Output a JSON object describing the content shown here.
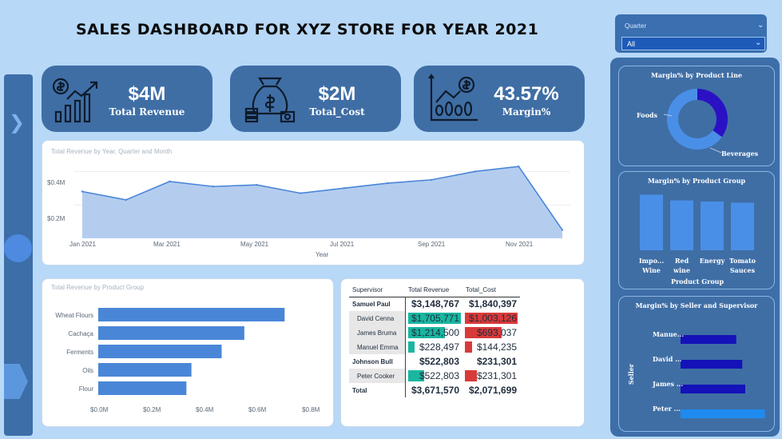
{
  "title": "SALES DASHBOARD FOR XYZ STORE FOR YEAR 2021",
  "slicer": {
    "label": "Quarter",
    "value": "All"
  },
  "kpis": {
    "revenue": {
      "value": "$4M",
      "label": "Total Revenue",
      "icon": "revenue-growth-icon"
    },
    "cost": {
      "value": "$2M",
      "label": "Total_Cost",
      "icon": "money-bag-icon"
    },
    "margin": {
      "value": "43.57%",
      "label": "Margin%",
      "icon": "dollar-chart-icon"
    }
  },
  "line_chart": {
    "title": "Total Revenue by Year, Quarter and Month",
    "xlabel": "Year",
    "ytick_labels": [
      "$0.4M",
      "$0.2M"
    ],
    "xtick_labels": [
      "Jan 2021",
      "Mar 2021",
      "May 2021",
      "Jul 2021",
      "Sep 2021",
      "Nov 2021"
    ]
  },
  "bar_chart": {
    "title": "Total Revenue by Product Group",
    "xtick_labels": [
      "$0.0M",
      "$0.2M",
      "$0.4M",
      "$0.6M",
      "$0.8M"
    ]
  },
  "matrix": {
    "headers": [
      "Supervisor",
      "Total Revenue",
      "Total_Cost"
    ],
    "rows": [
      {
        "kind": "parent",
        "name": "Samuel Paul",
        "revenue": "$3,148,767",
        "cost": "$1,840,397"
      },
      {
        "kind": "child",
        "name": "David Cenna",
        "revenue": "$1,705,771",
        "cost": "$1,003,126",
        "rev_frac": 1.0,
        "cost_frac": 1.0
      },
      {
        "kind": "child",
        "name": "James Bruma",
        "revenue": "$1,214,500",
        "cost": "$693,037",
        "rev_frac": 0.71,
        "cost_frac": 0.69
      },
      {
        "kind": "child",
        "name": "Manuel Emma",
        "revenue": "$228,497",
        "cost": "$144,235",
        "rev_frac": 0.13,
        "cost_frac": 0.14
      },
      {
        "kind": "parent",
        "name": "Johnson Bull",
        "revenue": "$522,803",
        "cost": "$231,301"
      },
      {
        "kind": "child",
        "name": "Peter Cooker",
        "revenue": "$522,803",
        "cost": "$231,301",
        "rev_frac": 0.31,
        "cost_frac": 0.23
      },
      {
        "kind": "total",
        "name": "Total",
        "revenue": "$3,671,570",
        "cost": "$2,071,699"
      }
    ],
    "colors": {
      "revenue_bar": "#19b6a0",
      "cost_bar": "#d83a3a"
    }
  },
  "side": {
    "donut": {
      "title": "Margin% by Product Line",
      "labels": [
        "Foods",
        "Beverages"
      ]
    },
    "group": {
      "title": "Margin% by Product Group"
    },
    "seller": {
      "title": "Margin% by Seller and Supervisor",
      "axis": "Seller"
    }
  },
  "chart_data": [
    {
      "type": "area",
      "title": "Total Revenue by Year, Quarter and Month",
      "xlabel": "Year",
      "ylabel": "",
      "categories": [
        "Jan 2021",
        "Feb 2021",
        "Mar 2021",
        "Apr 2021",
        "May 2021",
        "Jun 2021",
        "Jul 2021",
        "Aug 2021",
        "Sep 2021",
        "Oct 2021",
        "Nov 2021",
        "Dec 2021"
      ],
      "values": [
        0.28,
        0.23,
        0.34,
        0.31,
        0.32,
        0.27,
        0.3,
        0.33,
        0.35,
        0.4,
        0.43,
        0.05
      ],
      "ylim": [
        0,
        0.45
      ],
      "color": "#4a86d8"
    },
    {
      "type": "bar",
      "orientation": "horizontal",
      "title": "Total Revenue by Product Group",
      "categories": [
        "Wheat Flours",
        "Cachaça",
        "Ferments",
        "Oils",
        "Flour"
      ],
      "values": [
        0.74,
        0.58,
        0.49,
        0.37,
        0.35
      ],
      "xlim": [
        0,
        0.85
      ],
      "color": "#4a86d8"
    },
    {
      "type": "pie",
      "title": "Margin% by Product Line",
      "categories": [
        "Foods",
        "Beverages"
      ],
      "values": [
        35,
        65
      ],
      "colors": [
        "#2b11c4",
        "#4a8fe7"
      ]
    },
    {
      "type": "bar",
      "title": "Margin% by Product Group",
      "categories": [
        "Impo... Wine",
        "Red wine",
        "Energy",
        "Tomato Sauces"
      ],
      "series_label": "Product Group",
      "values": [
        0.49,
        0.44,
        0.43,
        0.42
      ],
      "ylim": [
        0,
        0.55
      ],
      "color": "#4a8fe7"
    },
    {
      "type": "bar",
      "orientation": "horizontal",
      "title": "Margin% by Seller and Supervisor",
      "ylabel": "Seller",
      "categories": [
        "Manue...",
        "David ...",
        "James ...",
        "Peter ..."
      ],
      "values": [
        0.37,
        0.41,
        0.43,
        0.56
      ],
      "xlim": [
        0,
        0.6
      ],
      "colors": [
        "#1412b8",
        "#1412b8",
        "#1412b8",
        "#1e8bf0"
      ]
    }
  ]
}
